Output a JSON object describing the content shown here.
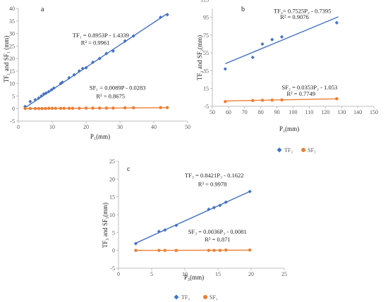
{
  "chart_data": [
    {
      "type": "scatter",
      "panel_label": "a",
      "xlabel": "P₁(mm)",
      "ylabel": "TF₁ and SF₁ (mm)",
      "xlim": [
        0,
        50
      ],
      "ylim": [
        -5,
        40
      ],
      "xticks": [
        "0",
        "10",
        "20",
        "30",
        "40",
        "50"
      ],
      "yticks": [
        "-5",
        "0",
        "5",
        "10",
        "15",
        "20",
        "25",
        "30",
        "35",
        "40"
      ],
      "grid": false,
      "legend": [],
      "annotations": [
        {
          "text": "TF₁ = 0.8953P - 1.4339",
          "x": 16,
          "y": 28.5
        },
        {
          "text": "R² = 0.9961",
          "x": 18.5,
          "y": 25.5
        },
        {
          "text": "SF₁ = 0.0089P - 0.0283",
          "x": 21,
          "y": 7.5
        },
        {
          "text": "R² = 0.8675",
          "x": 23,
          "y": 4.2
        }
      ],
      "series": [
        {
          "color": "#4472C4",
          "marker": "diamond",
          "trend": [
            0.8953,
            -1.4339
          ],
          "trend_x": [
            2,
            44
          ],
          "x": [
            2.0,
            3.5,
            5.0,
            6.0,
            6.8,
            7.5,
            8.2,
            9.0,
            9.8,
            10.5,
            12.5,
            13.0,
            15.0,
            16.5,
            18.0,
            19.0,
            20.0,
            22.0,
            24.0,
            26.0,
            28.0,
            31.5,
            34.0,
            42.0,
            44.0
          ],
          "y": [
            0.8,
            2.8,
            3.5,
            4.2,
            5.0,
            5.8,
            6.2,
            6.8,
            7.5,
            8.2,
            10.0,
            10.5,
            12.3,
            13.5,
            15.0,
            16.0,
            16.3,
            18.5,
            20.0,
            22.0,
            23.0,
            27.0,
            29.0,
            36.5,
            37.5
          ]
        },
        {
          "color": "#ED7D31",
          "marker": "circle",
          "trend": [
            0.0089,
            -0.0283
          ],
          "trend_x": [
            2,
            44
          ],
          "x": [
            2.0,
            3.5,
            5.0,
            6.0,
            7.0,
            8.0,
            9.0,
            10.0,
            11.0,
            12.5,
            13.5,
            15.0,
            16.0,
            18.0,
            20.0,
            22.0,
            24.0,
            26.0,
            28.0,
            31.5,
            34.0,
            42.0,
            44.0
          ],
          "y": [
            0.0,
            0.0,
            0.0,
            0.0,
            0.0,
            0.0,
            0.1,
            0.1,
            0.1,
            0.1,
            0.1,
            0.1,
            0.1,
            0.1,
            0.2,
            0.2,
            0.2,
            0.2,
            0.2,
            0.3,
            0.3,
            0.4,
            0.4
          ]
        }
      ]
    },
    {
      "type": "scatter",
      "panel_label": "b",
      "xlabel": "P₂(mm)",
      "ylabel": "TF₂ and SF₂(mm)",
      "xlim": [
        50,
        150
      ],
      "ylim": [
        -5,
        105
      ],
      "xticks": [
        "50",
        "60",
        "70",
        "80",
        "90",
        "100",
        "110",
        "120",
        "130",
        "140",
        "150"
      ],
      "yticks": [
        "-5",
        "15",
        "35",
        "55",
        "75",
        "95",
        "115"
      ],
      "yticks_values": [
        -5,
        15,
        35,
        55,
        75,
        95,
        115
      ],
      "grid": false,
      "legend": [
        {
          "label": "TF₂",
          "color": "#4472C4",
          "marker": "diamond"
        },
        {
          "label": "SF₂",
          "color": "#ED7D31",
          "marker": "circle"
        }
      ],
      "legend_position": "bottom",
      "annotations": [
        {
          "text": "TF₂= 0.7525P₂ - 0.7395",
          "x": 88,
          "y": 100
        },
        {
          "text": "R² = 0.9076",
          "x": 92,
          "y": 93
        },
        {
          "text": "SF₂ = 0.0353P₂ - 1.053",
          "x": 93,
          "y": 14
        },
        {
          "text": "R² = 0.7749",
          "x": 96,
          "y": 7
        }
      ],
      "series": [
        {
          "color": "#4472C4",
          "marker": "diamond",
          "trend": [
            0.7525,
            -0.7395
          ],
          "trend_x": [
            58,
            128
          ],
          "x": [
            58,
            75,
            81,
            87,
            93,
            127
          ],
          "y": [
            37,
            50,
            65,
            70,
            73,
            89
          ]
        },
        {
          "color": "#ED7D31",
          "marker": "circle",
          "trend": [
            0.0353,
            -1.053
          ],
          "trend_x": [
            58,
            128
          ],
          "x": [
            58,
            75,
            81,
            87,
            93,
            127
          ],
          "y": [
            0.3,
            1.5,
            1.8,
            2.0,
            2.2,
            3.5
          ]
        }
      ]
    },
    {
      "type": "scatter",
      "panel_label": "c",
      "xlabel": "P₃(mm)",
      "ylabel": "TF₃ and SF₃(mm)",
      "xlim": [
        0,
        25
      ],
      "ylim": [
        -5,
        25
      ],
      "xticks": [
        "0",
        "5",
        "10",
        "15",
        "20",
        "25"
      ],
      "yticks": [
        "-5",
        "0",
        "5",
        "10",
        "15",
        "20",
        "25"
      ],
      "grid": false,
      "legend": [
        {
          "label": "TF₃",
          "color": "#4472C4",
          "marker": "diamond"
        },
        {
          "label": "SF₃",
          "color": "#ED7D31",
          "marker": "circle"
        }
      ],
      "legend_position": "bottom",
      "annotations": [
        {
          "text": "TF₃ = 0.8421P₃ - 0.1622",
          "x": 10,
          "y": 20.5
        },
        {
          "text": "R² = 0.9978",
          "x": 12,
          "y": 18
        },
        {
          "text": "SF₃ = 0.0036P₃ - 0.0081",
          "x": 10.5,
          "y": 4.7
        },
        {
          "text": "R² = 0.871",
          "x": 13,
          "y": 2.5
        }
      ],
      "series": [
        {
          "color": "#4472C4",
          "marker": "diamond",
          "trend": [
            0.8421,
            -0.1622
          ],
          "trend_x": [
            2.5,
            20
          ],
          "x": [
            2.6,
            6.1,
            7.0,
            8.7,
            13.6,
            14.4,
            15.3,
            16.2,
            19.8
          ],
          "y": [
            1.9,
            5.3,
            5.7,
            7.0,
            11.5,
            12.0,
            12.6,
            13.5,
            16.5
          ]
        },
        {
          "color": "#ED7D31",
          "marker": "circle",
          "trend": [
            0.0036,
            -0.0081
          ],
          "trend_x": [
            2.5,
            20
          ],
          "x": [
            2.6,
            6.1,
            7.0,
            8.7,
            13.6,
            14.4,
            15.3,
            16.2,
            19.8
          ],
          "y": [
            0.0,
            0.0,
            0.0,
            0.0,
            0.0,
            0.0,
            0.0,
            0.1,
            0.1
          ]
        }
      ]
    }
  ]
}
